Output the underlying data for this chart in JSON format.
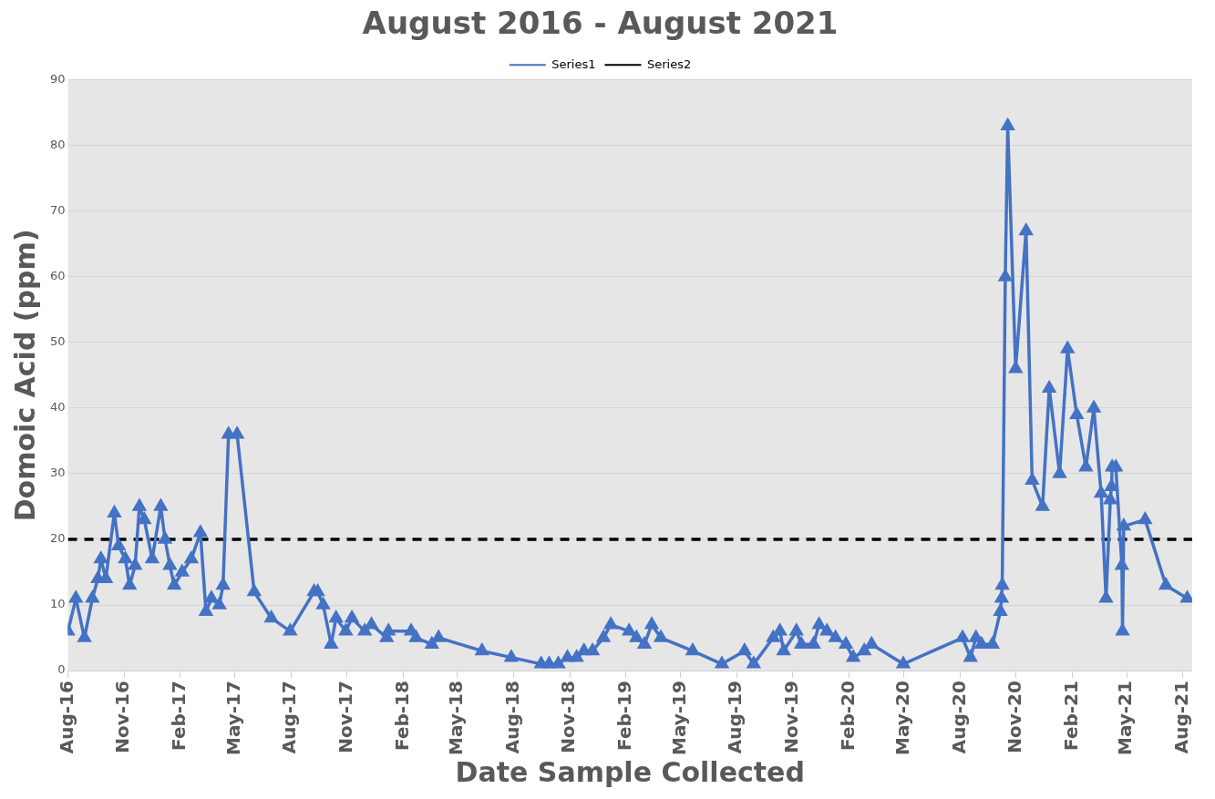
{
  "chart_data": {
    "type": "line",
    "title": "August 2016 - August 2021",
    "xlabel": "Date Sample Collected",
    "ylabel": "Domoic Acid (ppm)",
    "xlim": [
      "2016-08-01",
      "2021-08-16"
    ],
    "xticks": [
      {
        "value": "2016-08-01",
        "label": "Aug-16"
      },
      {
        "value": "2016-11-01",
        "label": "Nov-16"
      },
      {
        "value": "2017-02-01",
        "label": "Feb-17"
      },
      {
        "value": "2017-05-01",
        "label": "May-17"
      },
      {
        "value": "2017-08-01",
        "label": "Aug-17"
      },
      {
        "value": "2017-11-01",
        "label": "Nov-17"
      },
      {
        "value": "2018-02-01",
        "label": "Feb-18"
      },
      {
        "value": "2018-05-01",
        "label": "May-18"
      },
      {
        "value": "2018-08-01",
        "label": "Aug-18"
      },
      {
        "value": "2018-11-01",
        "label": "Nov-18"
      },
      {
        "value": "2019-02-01",
        "label": "Feb-19"
      },
      {
        "value": "2019-05-01",
        "label": "May-19"
      },
      {
        "value": "2019-08-01",
        "label": "Aug-19"
      },
      {
        "value": "2019-11-01",
        "label": "Nov-19"
      },
      {
        "value": "2020-02-01",
        "label": "Feb-20"
      },
      {
        "value": "2020-05-01",
        "label": "May-20"
      },
      {
        "value": "2020-08-01",
        "label": "Aug-20"
      },
      {
        "value": "2020-11-01",
        "label": "Nov-20"
      },
      {
        "value": "2021-02-01",
        "label": "Feb-21"
      },
      {
        "value": "2021-05-01",
        "label": "May-21"
      },
      {
        "value": "2021-08-01",
        "label": "Aug-21"
      }
    ],
    "ylim": [
      0,
      90
    ],
    "yticks": [
      0,
      10,
      20,
      30,
      40,
      50,
      60,
      70,
      80,
      90
    ],
    "grid": "y",
    "legend": "top",
    "series": [
      {
        "name": "Series1",
        "color": "#4472c4",
        "marker": "triangle",
        "line_style": "solid",
        "x": [
          "2016-08-01",
          "2016-08-14",
          "2016-08-28",
          "2016-09-10",
          "2016-09-19",
          "2016-09-24",
          "2016-10-02",
          "2016-10-16",
          "2016-10-23",
          "2016-11-03",
          "2016-11-10",
          "2016-11-19",
          "2016-11-26",
          "2016-12-04",
          "2016-12-17",
          "2016-12-31",
          "2017-01-07",
          "2017-01-15",
          "2017-01-22",
          "2017-02-04",
          "2017-02-19",
          "2017-03-06",
          "2017-03-15",
          "2017-03-24",
          "2017-04-06",
          "2017-04-12",
          "2017-04-21",
          "2017-05-05",
          "2017-06-02",
          "2017-06-30",
          "2017-07-31",
          "2017-09-08",
          "2017-09-14",
          "2017-09-23",
          "2017-10-06",
          "2017-10-14",
          "2017-10-30",
          "2017-11-09",
          "2017-11-30",
          "2017-12-11",
          "2018-01-05",
          "2018-01-08",
          "2018-02-14",
          "2018-02-22",
          "2018-03-20",
          "2018-03-31",
          "2018-06-10",
          "2018-07-28",
          "2018-09-15",
          "2018-09-28",
          "2018-10-13",
          "2018-10-28",
          "2018-11-12",
          "2018-11-24",
          "2018-12-08",
          "2018-12-26",
          "2019-01-07",
          "2019-02-06",
          "2019-02-18",
          "2019-03-03",
          "2019-03-15",
          "2019-03-30",
          "2019-05-21",
          "2019-07-08",
          "2019-08-14",
          "2019-08-29",
          "2019-09-30",
          "2019-10-11",
          "2019-10-17",
          "2019-11-07",
          "2019-11-15",
          "2019-12-05",
          "2019-12-14",
          "2019-12-27",
          "2020-01-10",
          "2020-01-27",
          "2020-02-08",
          "2020-02-26",
          "2020-03-09",
          "2020-04-30",
          "2020-08-05",
          "2020-08-18",
          "2020-08-27",
          "2020-09-05",
          "2020-09-23",
          "2020-10-06",
          "2020-10-08",
          "2020-10-09",
          "2020-10-14",
          "2020-10-18",
          "2020-10-31",
          "2020-11-17",
          "2020-11-27",
          "2020-12-14",
          "2020-12-25",
          "2021-01-11",
          "2021-01-24",
          "2021-02-08",
          "2021-02-23",
          "2021-03-08",
          "2021-03-20",
          "2021-03-28",
          "2021-04-04",
          "2021-04-06",
          "2021-04-07",
          "2021-04-13",
          "2021-04-23",
          "2021-04-24",
          "2021-04-26",
          "2021-05-31",
          "2021-07-04",
          "2021-08-08"
        ],
        "values": [
          6,
          11,
          5,
          11,
          14,
          17,
          14,
          24,
          19,
          17,
          13,
          16,
          25,
          23,
          17,
          25,
          20,
          16,
          13,
          15,
          17,
          21,
          9,
          11,
          10,
          13,
          36,
          36,
          12,
          8,
          6,
          12,
          12,
          10,
          4,
          8,
          6,
          8,
          6,
          7,
          5,
          6,
          6,
          5,
          4,
          5,
          3,
          2,
          1,
          1,
          1,
          2,
          2,
          3,
          3,
          5,
          7,
          6,
          5,
          4,
          7,
          5,
          3,
          1,
          3,
          1,
          5,
          6,
          3,
          6,
          4,
          4,
          7,
          6,
          5,
          4,
          2,
          3,
          4,
          1,
          5,
          2,
          5,
          4,
          4,
          9,
          11,
          13,
          60,
          83,
          46,
          67,
          29,
          25,
          43,
          30,
          49,
          39,
          31,
          40,
          27,
          11,
          26,
          28,
          31,
          31,
          16,
          6,
          22,
          23,
          13,
          11
        ]
      },
      {
        "name": "Series2",
        "color": "#000000",
        "marker": "none",
        "line_style": "dashed",
        "x": [
          "2016-08-01",
          "2021-08-16"
        ],
        "values": [
          20,
          20
        ]
      }
    ]
  }
}
